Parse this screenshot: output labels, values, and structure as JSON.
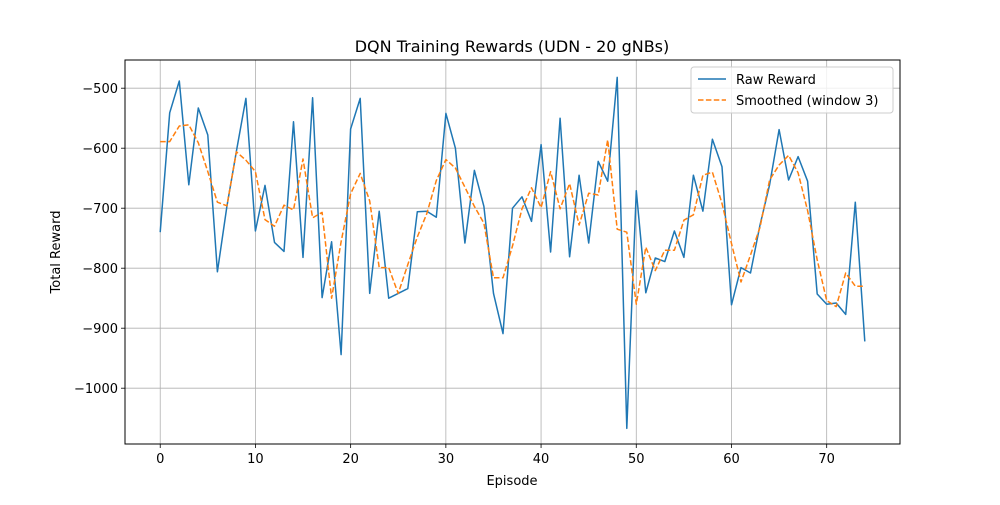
{
  "chart_data": {
    "type": "line",
    "title": "DQN Training Rewards (UDN - 20 gNBs)",
    "xlabel": "Episode",
    "ylabel": "Total Reward",
    "xlim": [
      -3.7,
      77.7
    ],
    "ylim": [
      -1093,
      -453
    ],
    "x_ticks": [
      0,
      10,
      20,
      30,
      40,
      50,
      60,
      70
    ],
    "x_tick_labels": [
      "0",
      "10",
      "20",
      "30",
      "40",
      "50",
      "60",
      "70"
    ],
    "y_ticks": [
      -1000,
      -900,
      -800,
      -700,
      -600,
      -500
    ],
    "y_tick_labels": [
      "−1000",
      "−900",
      "−800",
      "−700",
      "−600",
      "−500"
    ],
    "grid": true,
    "legend": {
      "position": "top-right"
    },
    "series": [
      {
        "name": "Raw Reward",
        "color": "#1f77b4",
        "style": "solid",
        "x": [
          0,
          1,
          2,
          3,
          4,
          5,
          6,
          7,
          8,
          9,
          10,
          11,
          12,
          13,
          14,
          15,
          16,
          17,
          18,
          19,
          20,
          21,
          22,
          23,
          24,
          25,
          26,
          27,
          28,
          29,
          30,
          31,
          32,
          33,
          34,
          35,
          36,
          37,
          38,
          39,
          40,
          41,
          42,
          43,
          44,
          45,
          46,
          47,
          48,
          49,
          50,
          51,
          52,
          53,
          54,
          55,
          56,
          57,
          58,
          59,
          60,
          61,
          62,
          63,
          64,
          65,
          66,
          67,
          68,
          69,
          70,
          71,
          72,
          73,
          74
        ],
        "values": [
          -740,
          -541,
          -488,
          -661,
          -533,
          -578,
          -806,
          -697,
          -605,
          -517,
          -738,
          -662,
          -757,
          -772,
          -556,
          -782,
          -516,
          -849,
          -756,
          -944,
          -568,
          -517,
          -842,
          -705,
          -850,
          -842,
          -834,
          -706,
          -705,
          -715,
          -542,
          -600,
          -758,
          -637,
          -697,
          -842,
          -909,
          -700,
          -681,
          -722,
          -594,
          -773,
          -550,
          -781,
          -645,
          -758,
          -622,
          -655,
          -482,
          -1067,
          -671,
          -841,
          -783,
          -789,
          -738,
          -782,
          -645,
          -705,
          -585,
          -631,
          -861,
          -799,
          -808,
          -728,
          -661,
          -569,
          -653,
          -614,
          -655,
          -843,
          -860,
          -858,
          -877,
          -690,
          -922
        ]
      },
      {
        "name": "Smoothed (window 3)",
        "color": "#ff7f0e",
        "style": "dashed",
        "x": [
          0,
          1,
          2,
          3,
          4,
          5,
          6,
          7,
          8,
          9,
          10,
          11,
          12,
          13,
          14,
          15,
          16,
          17,
          18,
          19,
          20,
          21,
          22,
          23,
          24,
          25,
          26,
          27,
          28,
          29,
          30,
          31,
          32,
          33,
          34,
          35,
          36,
          37,
          38,
          39,
          40,
          41,
          42,
          43,
          44,
          45,
          46,
          47,
          48,
          49,
          50,
          51,
          52,
          53,
          54,
          55,
          56,
          57,
          58,
          59,
          60,
          61,
          62,
          63,
          64,
          65,
          66,
          67,
          68,
          69,
          70,
          71,
          72,
          73,
          74
        ],
        "values": [
          -589,
          -589,
          -563,
          -561,
          -591,
          -639,
          -690,
          -696,
          -606,
          -620,
          -639,
          -719,
          -730,
          -695,
          -703,
          -618,
          -716,
          -707,
          -850,
          -756,
          -676,
          -642,
          -688,
          -799,
          -799,
          -842,
          -794,
          -748,
          -709,
          -654,
          -619,
          -633,
          -665,
          -697,
          -725,
          -816,
          -816,
          -763,
          -701,
          -666,
          -699,
          -639,
          -701,
          -659,
          -728,
          -675,
          -678,
          -586,
          -735,
          -740,
          -860,
          -765,
          -804,
          -770,
          -770,
          -720,
          -711,
          -645,
          -640,
          -692,
          -759,
          -823,
          -778,
          -732,
          -653,
          -628,
          -612,
          -641,
          -704,
          -786,
          -854,
          -864,
          -808,
          -830,
          -830
        ]
      }
    ]
  }
}
